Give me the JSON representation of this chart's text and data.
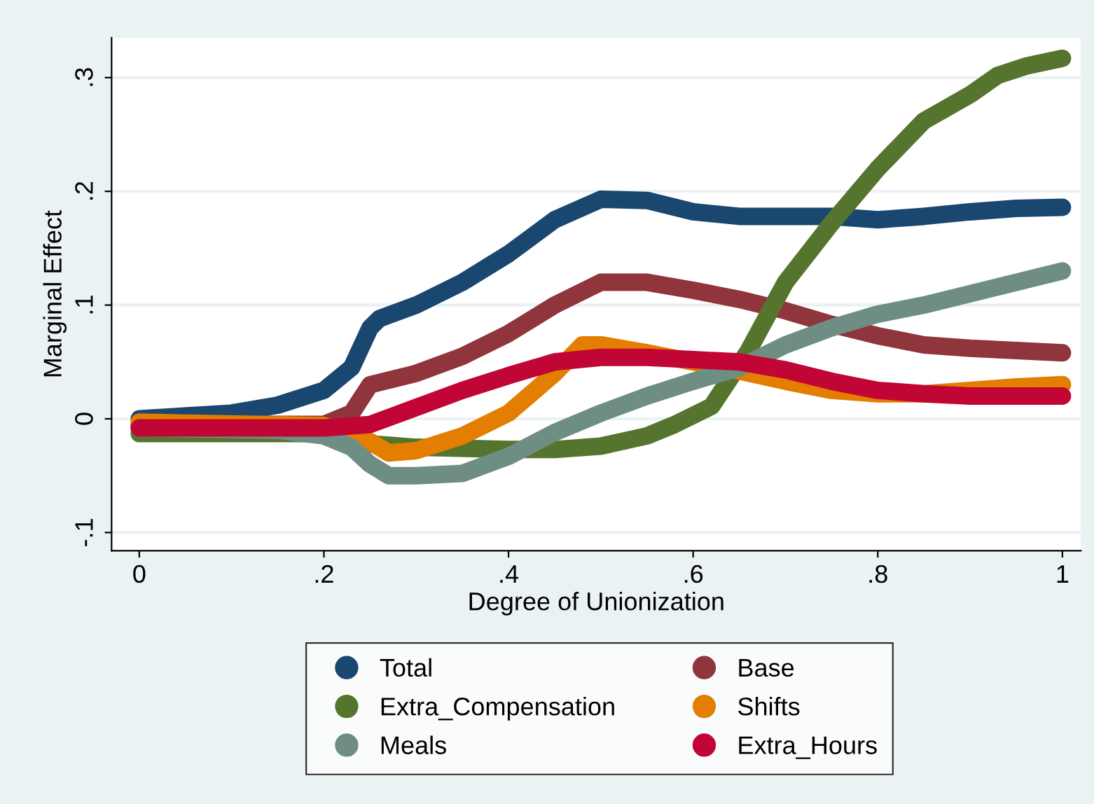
{
  "chart_data": {
    "type": "line",
    "xlabel": "Degree of Unionization",
    "ylabel": "Marginal Effect",
    "xlim": [
      -0.03,
      1.02
    ],
    "ylim": [
      -0.116,
      0.335
    ],
    "xticks": [
      0,
      {
        "value": 0.2,
        "label": ".2"
      },
      {
        "value": 0.4,
        "label": ".4"
      },
      {
        "value": 0.6,
        "label": ".6"
      },
      {
        "value": 0.8,
        "label": ".8"
      },
      1
    ],
    "yticks": [
      {
        "value": -0.1,
        "label": "-.1"
      },
      0,
      {
        "value": 0.1,
        "label": ".1"
      },
      {
        "value": 0.2,
        "label": ".2"
      },
      {
        "value": 0.3,
        "label": ".3"
      }
    ],
    "grid": "y",
    "legend": "bottom",
    "line_style": "solid",
    "series": [
      {
        "name": "Total",
        "color": "#1a476f",
        "x": [
          0,
          0.1,
          0.15,
          0.2,
          0.23,
          0.25,
          0.26,
          0.3,
          0.35,
          0.4,
          0.45,
          0.5,
          0.55,
          0.6,
          0.65,
          0.7,
          0.75,
          0.8,
          0.85,
          0.9,
          0.95,
          1
        ],
        "values": [
          0.0,
          0.005,
          0.012,
          0.025,
          0.045,
          0.08,
          0.088,
          0.1,
          0.12,
          0.145,
          0.175,
          0.193,
          0.192,
          0.182,
          0.178,
          0.178,
          0.178,
          0.175,
          0.178,
          0.182,
          0.185,
          0.186
        ]
      },
      {
        "name": "Base",
        "color": "#90353b",
        "x": [
          0,
          0.2,
          0.23,
          0.25,
          0.3,
          0.35,
          0.4,
          0.45,
          0.5,
          0.55,
          0.6,
          0.65,
          0.7,
          0.75,
          0.8,
          0.85,
          0.9,
          0.95,
          1
        ],
        "values": [
          -0.005,
          -0.005,
          0.005,
          0.03,
          0.04,
          0.055,
          0.075,
          0.1,
          0.12,
          0.12,
          0.113,
          0.105,
          0.095,
          0.083,
          0.073,
          0.065,
          0.062,
          0.06,
          0.058
        ]
      },
      {
        "name": "Extra_Compensation",
        "color": "#55752f",
        "x": [
          0,
          0.2,
          0.25,
          0.3,
          0.4,
          0.45,
          0.5,
          0.55,
          0.58,
          0.62,
          0.66,
          0.7,
          0.75,
          0.8,
          0.85,
          0.9,
          0.93,
          0.96,
          1
        ],
        "values": [
          -0.013,
          -0.013,
          -0.022,
          -0.025,
          -0.027,
          -0.027,
          -0.024,
          -0.015,
          -0.005,
          0.011,
          0.06,
          0.12,
          0.172,
          0.22,
          0.262,
          0.285,
          0.302,
          0.31,
          0.317
        ]
      },
      {
        "name": "Shifts",
        "color": "#e37e00",
        "x": [
          0,
          0.2,
          0.25,
          0.27,
          0.3,
          0.35,
          0.4,
          0.45,
          0.48,
          0.5,
          0.55,
          0.6,
          0.65,
          0.7,
          0.75,
          0.8,
          0.85,
          0.9,
          0.95,
          1
        ],
        "values": [
          -0.003,
          -0.006,
          -0.02,
          -0.03,
          -0.028,
          -0.015,
          0.005,
          0.04,
          0.065,
          0.065,
          0.058,
          0.05,
          0.042,
          0.033,
          0.025,
          0.022,
          0.022,
          0.025,
          0.028,
          0.03
        ]
      },
      {
        "name": "Meals",
        "color": "#6e8e84",
        "x": [
          0,
          0.15,
          0.2,
          0.23,
          0.25,
          0.27,
          0.3,
          0.35,
          0.4,
          0.45,
          0.5,
          0.55,
          0.6,
          0.65,
          0.7,
          0.75,
          0.8,
          0.85,
          0.9,
          0.95,
          1
        ],
        "values": [
          -0.008,
          -0.01,
          -0.015,
          -0.025,
          -0.04,
          -0.05,
          -0.05,
          -0.048,
          -0.033,
          -0.012,
          0.005,
          0.02,
          0.033,
          0.045,
          0.065,
          0.08,
          0.092,
          0.1,
          0.11,
          0.12,
          0.13
        ]
      },
      {
        "name": "Extra_Hours",
        "color": "#c10534",
        "x": [
          0,
          0.2,
          0.25,
          0.3,
          0.35,
          0.4,
          0.45,
          0.5,
          0.55,
          0.6,
          0.65,
          0.7,
          0.75,
          0.8,
          0.85,
          0.9,
          0.95,
          1
        ],
        "values": [
          -0.008,
          -0.008,
          -0.005,
          0.01,
          0.025,
          0.038,
          0.05,
          0.054,
          0.054,
          0.052,
          0.05,
          0.043,
          0.033,
          0.025,
          0.022,
          0.02,
          0.02,
          0.02
        ]
      }
    ]
  }
}
